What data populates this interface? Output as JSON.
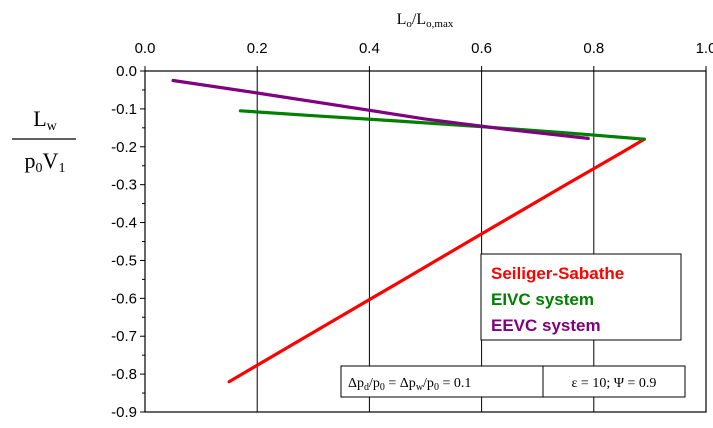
{
  "chart_data": {
    "type": "line",
    "xlabel": {
      "main": "L",
      "sub1": "o",
      "slash": "/L",
      "sub2": "o,max"
    },
    "ylabel": {
      "num_main": "L",
      "num_sub": "w",
      "den_p": "p",
      "den_p_sub": "0",
      "den_v": "V",
      "den_v_sub": "1"
    },
    "xlim": [
      0.0,
      1.0
    ],
    "ylim": [
      -0.9,
      0.0
    ],
    "x_ticks": [
      0.0,
      0.2,
      0.4,
      0.6,
      0.8,
      1.0
    ],
    "x_tick_labels": [
      "0.0",
      "0.2",
      "0.4",
      "0.6",
      "0.8",
      "1.0"
    ],
    "y_ticks": [
      0.0,
      -0.1,
      -0.2,
      -0.3,
      -0.4,
      -0.5,
      -0.6,
      -0.7,
      -0.8,
      -0.9
    ],
    "y_tick_labels": [
      "0.0",
      "-0.1",
      "-0.2",
      "-0.3",
      "-0.4",
      "-0.5",
      "-0.6",
      "-0.7",
      "-0.8",
      "-0.9"
    ],
    "grid": true,
    "x_axis_position": "top",
    "legend_position": "bottom-right",
    "series": [
      {
        "name": "Seiliger-Sabathe",
        "color": "#ff0000",
        "x": [
          0.15,
          0.3,
          0.45,
          0.6,
          0.75,
          0.85,
          0.89
        ],
        "y": [
          -0.82,
          -0.69,
          -0.56,
          -0.43,
          -0.3,
          -0.215,
          -0.18
        ]
      },
      {
        "name": "EIVC system",
        "color": "#008000",
        "x": [
          0.17,
          0.3,
          0.45,
          0.6,
          0.75,
          0.89
        ],
        "y": [
          -0.105,
          -0.118,
          -0.132,
          -0.147,
          -0.163,
          -0.18
        ]
      },
      {
        "name": "EEVC system",
        "color": "#800080",
        "x": [
          0.05,
          0.2,
          0.35,
          0.5,
          0.65,
          0.79
        ],
        "y": [
          -0.025,
          -0.058,
          -0.092,
          -0.127,
          -0.155,
          -0.178
        ]
      }
    ],
    "annotation": {
      "left": {
        "d1": "Δp",
        "d1_sub": "d",
        "d2": "/p",
        "d2_sub": "0",
        "eq1": " = Δp",
        "d3_sub": "w",
        "d4": "/p",
        "d4_sub": "0",
        "val": " = 0.1"
      },
      "right": "ε = 10; Ψ = 0.9"
    }
  }
}
